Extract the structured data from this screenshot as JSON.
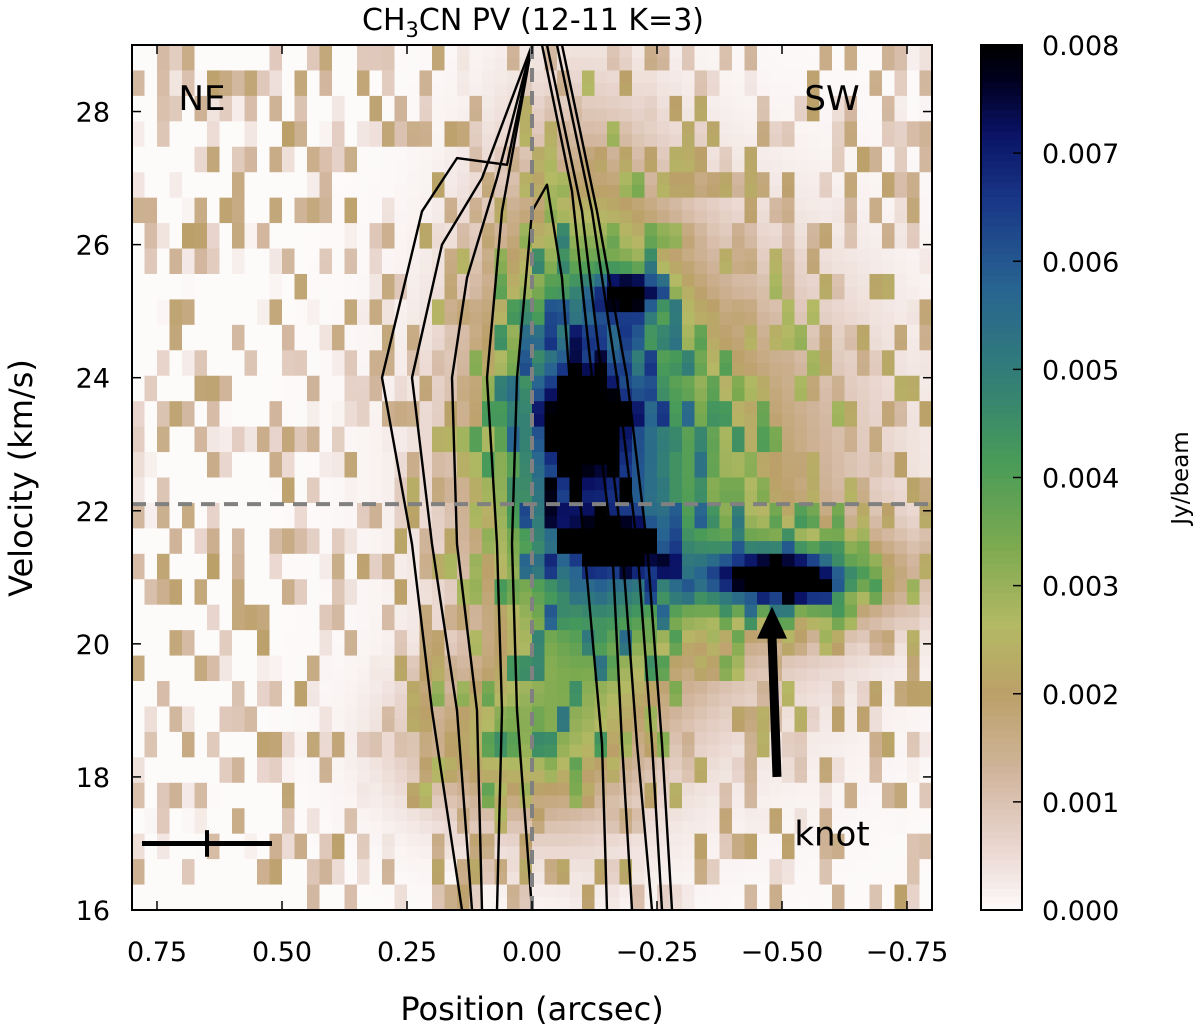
{
  "chart_data": {
    "type": "heatmap",
    "title": "CH3CN PV (12-11 K=3)",
    "title_parts": {
      "prefix": "CH",
      "sub": "3",
      "suffix": "CN PV (12-11 K=3)"
    },
    "xlabel": "Position (arcsec)",
    "ylabel": "Velocity (km/s)",
    "xlim": [
      0.8,
      -0.8
    ],
    "ylim": [
      16,
      29
    ],
    "x_ticks": [
      0.75,
      0.5,
      0.25,
      0.0,
      -0.25,
      -0.5,
      -0.75
    ],
    "x_tick_labels": [
      "0.75",
      "0.50",
      "0.25",
      "0.00",
      "−0.25",
      "−0.50",
      "−0.75"
    ],
    "y_ticks": [
      16,
      18,
      20,
      22,
      24,
      26,
      28
    ],
    "y_tick_labels": [
      "16",
      "18",
      "20",
      "22",
      "24",
      "26",
      "28"
    ],
    "colorbar": {
      "label": "Jy/beam",
      "range": [
        0.0,
        0.008
      ],
      "ticks": [
        0.0,
        0.001,
        0.002,
        0.003,
        0.004,
        0.005,
        0.006,
        0.007,
        0.008
      ],
      "tick_labels": [
        "0.000",
        "0.001",
        "0.002",
        "0.003",
        "0.004",
        "0.005",
        "0.006",
        "0.007",
        "0.008"
      ],
      "colormap": "gist_earth_r"
    },
    "reference_lines": {
      "x": 0.0,
      "y": 22.1,
      "style": "dashed",
      "color": "#808080"
    },
    "annotations": [
      {
        "text": "NE",
        "x": 0.66,
        "y": 28.2
      },
      {
        "text": "SW",
        "x": -0.6,
        "y": 28.2
      },
      {
        "text": "knot",
        "x": -0.6,
        "y": 17.15
      }
    ],
    "knot_arrow": {
      "from": [
        -0.49,
        18.0
      ],
      "to": [
        -0.48,
        20.5
      ]
    },
    "beam_marker": {
      "x": 0.65,
      "y": 17.0,
      "half_width_arcsec": 0.13,
      "half_height_kms": 0.2
    },
    "emission_components": [
      {
        "name": "main-ridge",
        "x": -0.1,
        "y": 23.0,
        "sx": 0.13,
        "sy": 2.6,
        "amp": 0.0052
      },
      {
        "name": "extended-wing",
        "x": -0.3,
        "y": 22.6,
        "sx": 0.24,
        "sy": 2.2,
        "amp": 0.0026
      },
      {
        "name": "blob-upper",
        "x": -0.1,
        "y": 23.4,
        "sx": 0.045,
        "sy": 0.4,
        "amp": 0.0058
      },
      {
        "name": "blob-upper-2",
        "x": -0.19,
        "y": 25.2,
        "sx": 0.05,
        "sy": 0.25,
        "amp": 0.0042
      },
      {
        "name": "blob-mid",
        "x": -0.17,
        "y": 21.5,
        "sx": 0.05,
        "sy": 0.22,
        "amp": 0.005
      },
      {
        "name": "knot",
        "x": -0.5,
        "y": 21.0,
        "sx": 0.09,
        "sy": 0.25,
        "amp": 0.0065
      },
      {
        "name": "knot-halo",
        "x": -0.5,
        "y": 21.0,
        "sx": 0.19,
        "sy": 0.55,
        "amp": 0.0025
      },
      {
        "name": "lower-tail",
        "x": 0.05,
        "y": 18.5,
        "sx": 0.14,
        "sy": 0.8,
        "amp": 0.0022
      }
    ],
    "contours": [
      {
        "level": 1,
        "points": [
          [
            0.0,
            29.0
          ],
          [
            0.05,
            27.2
          ],
          [
            0.15,
            27.3
          ],
          [
            0.22,
            26.5
          ],
          [
            0.3,
            24.0
          ],
          [
            0.24,
            21.5
          ],
          [
            0.2,
            19.0
          ],
          [
            0.16,
            17.0
          ],
          [
            0.14,
            16.0
          ]
        ]
      },
      {
        "level": 1,
        "points": [
          [
            -0.02,
            29.0
          ],
          [
            -0.08,
            26.8
          ],
          [
            -0.12,
            24.0
          ],
          [
            -0.16,
            21.5
          ],
          [
            -0.18,
            18.5
          ],
          [
            -0.2,
            16.0
          ]
        ]
      },
      {
        "level": 2,
        "points": [
          [
            0.0,
            29.0
          ],
          [
            0.1,
            27.0
          ],
          [
            0.18,
            26.0
          ],
          [
            0.24,
            24.0
          ],
          [
            0.2,
            21.5
          ],
          [
            0.15,
            19.0
          ],
          [
            0.12,
            16.0
          ]
        ]
      },
      {
        "level": 2,
        "points": [
          [
            -0.03,
            29.0
          ],
          [
            -0.1,
            26.5
          ],
          [
            -0.14,
            24.0
          ],
          [
            -0.18,
            21.5
          ],
          [
            -0.21,
            18.5
          ],
          [
            -0.24,
            16.0
          ]
        ]
      },
      {
        "level": 3,
        "points": [
          [
            0.0,
            29.0
          ],
          [
            0.07,
            27.0
          ],
          [
            0.13,
            25.5
          ],
          [
            0.16,
            24.0
          ],
          [
            0.15,
            21.5
          ],
          [
            0.11,
            19.0
          ],
          [
            0.1,
            16.0
          ]
        ]
      },
      {
        "level": 3,
        "points": [
          [
            -0.05,
            29.0
          ],
          [
            -0.12,
            26.5
          ],
          [
            -0.17,
            24.0
          ],
          [
            -0.21,
            21.5
          ],
          [
            -0.24,
            18.5
          ],
          [
            -0.26,
            16.0
          ]
        ]
      },
      {
        "level": 4,
        "points": [
          [
            0.0,
            29.0
          ],
          [
            0.06,
            26.5
          ],
          [
            0.09,
            24.0
          ],
          [
            0.07,
            21.5
          ],
          [
            0.06,
            19.0
          ],
          [
            0.07,
            16.0
          ]
        ]
      },
      {
        "level": 4,
        "points": [
          [
            -0.06,
            29.0
          ],
          [
            -0.13,
            26.5
          ],
          [
            -0.19,
            24.0
          ],
          [
            -0.23,
            21.5
          ],
          [
            -0.26,
            18.5
          ],
          [
            -0.28,
            16.0
          ]
        ]
      },
      {
        "level": 5,
        "points": [
          [
            0.0,
            16.0
          ],
          [
            0.03,
            19.0
          ],
          [
            0.04,
            21.5
          ],
          [
            0.03,
            24.0
          ],
          [
            0.0,
            26.5
          ],
          [
            -0.03,
            26.9
          ],
          [
            -0.06,
            25.5
          ],
          [
            -0.08,
            23.5
          ],
          [
            -0.11,
            21.0
          ],
          [
            -0.14,
            18.5
          ],
          [
            -0.15,
            16.0
          ]
        ]
      }
    ]
  }
}
